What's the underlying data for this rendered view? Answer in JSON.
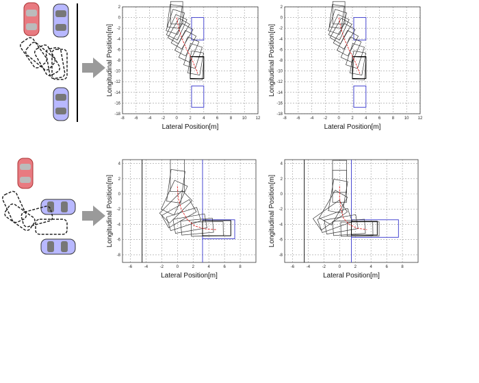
{
  "chart_data": [
    {
      "type": "line",
      "name_hint": "parallel-left",
      "xlabel": "Lateral Position[m]",
      "ylabel": "Longitudinal Position[m]",
      "xlim": [
        -8,
        12
      ],
      "ylim": [
        -18,
        2
      ],
      "xticks": [
        -8,
        -6,
        -4,
        -2,
        0,
        2,
        4,
        6,
        8,
        10,
        12
      ],
      "yticks": [
        -18,
        -16,
        -14,
        -12,
        -10,
        -8,
        -6,
        -4,
        -2,
        0,
        2
      ],
      "grid": true,
      "path": [
        [
          0.0,
          0.0
        ],
        [
          0.3,
          -2.0
        ],
        [
          0.8,
          -4.0
        ],
        [
          1.5,
          -6.0
        ],
        [
          2.3,
          -8.0
        ],
        [
          2.8,
          -9.5
        ],
        [
          3.1,
          -10.5
        ]
      ],
      "parking_boxes": [
        [
          2.2,
          -4.2,
          4.0,
          0.0
        ],
        [
          2.2,
          -16.8,
          4.0,
          -12.8
        ]
      ],
      "car_poses": [
        [
          0.0,
          0.9,
          0
        ],
        [
          -0.3,
          0.2,
          8
        ],
        [
          -0.2,
          -0.8,
          18
        ],
        [
          0.0,
          -1.8,
          25
        ],
        [
          0.3,
          -2.5,
          30
        ],
        [
          0.8,
          -3.5,
          30
        ],
        [
          1.3,
          -4.8,
          28
        ],
        [
          1.8,
          -6.0,
          24
        ],
        [
          2.4,
          -7.2,
          18
        ],
        [
          2.8,
          -8.5,
          10
        ],
        [
          3.0,
          -9.5,
          4
        ]
      ],
      "final_box": [
        2.0,
        -11.4,
        4.0,
        -7.3
      ]
    },
    {
      "type": "line",
      "name_hint": "parallel-right",
      "xlabel": "Lateral Position[m]",
      "ylabel": "Longitudinal Position[m]",
      "xlim": [
        -8,
        12
      ],
      "ylim": [
        -18,
        2
      ],
      "xticks": [
        -8,
        -6,
        -4,
        -2,
        0,
        2,
        4,
        6,
        8,
        10,
        12
      ],
      "yticks": [
        -18,
        -16,
        -14,
        -12,
        -10,
        -8,
        -6,
        -4,
        -2,
        0,
        2
      ],
      "grid": true,
      "path": [
        [
          0.0,
          0.0
        ],
        [
          0.3,
          -2.0
        ],
        [
          0.8,
          -4.0
        ],
        [
          1.5,
          -6.0
        ],
        [
          2.3,
          -8.0
        ],
        [
          2.8,
          -9.5
        ],
        [
          3.1,
          -10.5
        ]
      ],
      "parking_boxes": [
        [
          2.2,
          -4.2,
          4.0,
          0.0
        ],
        [
          2.2,
          -16.8,
          4.0,
          -12.8
        ]
      ],
      "car_poses": [
        [
          0.0,
          0.9,
          0
        ],
        [
          -0.3,
          0.2,
          8
        ],
        [
          -0.2,
          -0.8,
          18
        ],
        [
          0.0,
          -1.8,
          25
        ],
        [
          0.3,
          -2.5,
          30
        ],
        [
          0.8,
          -3.5,
          30
        ],
        [
          1.3,
          -4.8,
          28
        ],
        [
          1.8,
          -6.0,
          24
        ],
        [
          2.4,
          -7.2,
          18
        ],
        [
          2.8,
          -8.5,
          10
        ],
        [
          3.0,
          -9.5,
          4
        ]
      ],
      "final_box": [
        2.0,
        -11.4,
        4.0,
        -7.3
      ]
    },
    {
      "type": "line",
      "name_hint": "perpendicular-left",
      "xlabel": "Lateral Position[m]",
      "ylabel": "Longitudinal Position[m]",
      "xlim": [
        -7,
        10
      ],
      "ylim": [
        -9,
        4.5
      ],
      "xticks": [
        -6,
        -4,
        -2,
        0,
        2,
        4,
        6,
        8
      ],
      "yticks": [
        -8,
        -6,
        -4,
        -2,
        0,
        2,
        4
      ],
      "grid": true,
      "path": [
        [
          0.0,
          1.0
        ],
        [
          0.1,
          -0.5
        ],
        [
          0.5,
          -2.0
        ],
        [
          1.2,
          -3.3
        ],
        [
          2.2,
          -4.2
        ],
        [
          3.5,
          -4.6
        ],
        [
          5.0,
          -4.7
        ]
      ],
      "vlines": [
        [
          -4.5,
          "#000000"
        ],
        [
          3.2,
          "#3333cc"
        ]
      ],
      "parking_boxes": [
        [
          3.2,
          -5.9,
          7.3,
          -3.4
        ]
      ],
      "car_poses": [
        [
          0.0,
          2.4,
          0
        ],
        [
          -0.2,
          1.0,
          8
        ],
        [
          -0.4,
          -0.5,
          25
        ],
        [
          -0.2,
          -1.7,
          45
        ],
        [
          0.2,
          -2.6,
          60
        ],
        [
          0.8,
          -3.3,
          72
        ],
        [
          1.6,
          -3.9,
          80
        ],
        [
          2.5,
          -4.3,
          85
        ],
        [
          3.8,
          -4.6,
          89
        ]
      ],
      "final_box": [
        3.2,
        -5.5,
        6.8,
        -3.5
      ]
    },
    {
      "type": "line",
      "name_hint": "perpendicular-right",
      "xlabel": "Lateral Position[m]",
      "ylabel": "Longitudinal Position[m]",
      "xlim": [
        -7,
        10
      ],
      "ylim": [
        -9,
        4.5
      ],
      "xticks": [
        -6,
        -4,
        -2,
        0,
        2,
        4,
        6,
        8
      ],
      "yticks": [
        -8,
        -6,
        -4,
        -2,
        0,
        2,
        4
      ],
      "grid": true,
      "path": [
        [
          0.0,
          1.0
        ],
        [
          0.0,
          -0.5
        ],
        [
          0.2,
          -2.0
        ],
        [
          0.5,
          -3.2
        ],
        [
          1.2,
          -4.0
        ],
        [
          2.2,
          -4.5
        ],
        [
          3.5,
          -4.7
        ]
      ],
      "vlines": [
        [
          -4.5,
          "#000000"
        ],
        [
          1.5,
          "#3333cc"
        ]
      ],
      "parking_boxes": [
        [
          1.5,
          -5.7,
          7.5,
          -3.4
        ]
      ],
      "car_poses": [
        [
          0.0,
          2.3,
          0
        ],
        [
          0.0,
          1.0,
          0
        ],
        [
          -0.2,
          -0.3,
          10
        ],
        [
          -0.8,
          -1.8,
          30
        ],
        [
          -1.2,
          -2.8,
          55
        ],
        [
          -0.6,
          -3.5,
          70
        ],
        [
          0.2,
          -4.0,
          80
        ],
        [
          1.2,
          -4.4,
          86
        ],
        [
          2.2,
          -4.6,
          89
        ],
        [
          3.0,
          -4.6,
          90
        ]
      ],
      "final_box": [
        1.5,
        -5.4,
        4.8,
        -3.6
      ]
    }
  ]
}
